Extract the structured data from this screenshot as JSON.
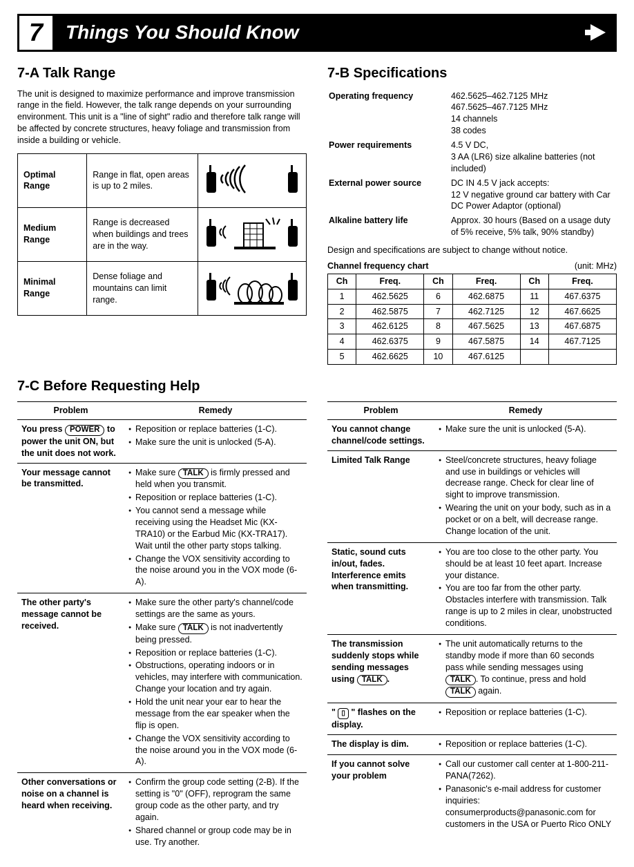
{
  "section_number": "7",
  "header_title": "Things You Should Know",
  "s7a": {
    "heading": "7-A  Talk Range",
    "intro": "The unit is designed to maximize performance and improve transmission range in the field. However, the talk range depends on your surrounding environment. This unit is a \"line of sight\" radio and therefore talk range will be affected by concrete structures, heavy foliage and transmission from inside a building or vehicle.",
    "rows": [
      {
        "label": "Optimal Range",
        "desc": "Range in flat, open areas is up to 2 miles."
      },
      {
        "label": "Medium Range",
        "desc": "Range is decreased when buildings and trees are in the way."
      },
      {
        "label": "Minimal Range",
        "desc": "Dense foliage and mountains can limit range."
      }
    ]
  },
  "s7b": {
    "heading": "7-B  Specifications",
    "specs": [
      {
        "k": "Operating frequency",
        "v": "462.5625–462.7125 MHz\n467.5625–467.7125 MHz\n14 channels\n38 codes"
      },
      {
        "k": "Power requirements",
        "v": "4.5 V DC,\n3 AA (LR6) size alkaline batteries (not included)"
      },
      {
        "k": "External power source",
        "v": "DC IN 4.5 V jack accepts:\n12 V negative ground car battery with Car DC Power Adaptor (optional)"
      },
      {
        "k": "Alkaline battery life",
        "v": "Approx. 30 hours (Based on a usage duty of 5% receive, 5% talk, 90% standby)"
      }
    ],
    "note": "Design and specifications are subject to change without notice.",
    "freq_title": "Channel frequency chart",
    "freq_unit": "(unit: MHz)",
    "freq_cols": [
      "Ch",
      "Freq.",
      "Ch",
      "Freq.",
      "Ch",
      "Freq."
    ],
    "freq_rows": [
      [
        "1",
        "462.5625",
        "6",
        "462.6875",
        "11",
        "467.6375"
      ],
      [
        "2",
        "462.5875",
        "7",
        "462.7125",
        "12",
        "467.6625"
      ],
      [
        "3",
        "462.6125",
        "8",
        "467.5625",
        "13",
        "467.6875"
      ],
      [
        "4",
        "462.6375",
        "9",
        "467.5875",
        "14",
        "467.7125"
      ],
      [
        "5",
        "462.6625",
        "10",
        "467.6125",
        "",
        ""
      ]
    ]
  },
  "s7c": {
    "heading": "7-C  Before Requesting Help",
    "col_problem": "Problem",
    "col_remedy": "Remedy",
    "left": [
      {
        "problem_html": "You press <span class='btn-key'>POWER</span> to power the unit ON, but the unit does not work.",
        "remedies": [
          "Reposition or replace batteries (1-C).",
          "Make sure the unit is unlocked (5-A)."
        ]
      },
      {
        "problem_html": "Your message cannot be transmitted.",
        "remedies": [
          "Make sure <span class='btn-key'>TALK</span> is firmly pressed and held when you transmit.",
          "Reposition or replace batteries (1-C).",
          "You cannot send a message while receiving using the Headset Mic (KX-TRA10) or the Earbud Mic (KX-TRA17). Wait until the other party stops talking.",
          "Change the VOX sensitivity according to the noise around you in the VOX mode (6-A)."
        ]
      },
      {
        "problem_html": "The other party's message cannot be received.",
        "remedies": [
          "Make sure the other party's channel/code settings are the same as yours.",
          "Make sure <span class='btn-key'>TALK</span> is not inadvertently being pressed.",
          "Reposition or replace batteries (1-C).",
          "Obstructions, operating indoors or in vehicles, may interfere with communication. Change your location and try again.",
          "Hold the unit near your ear to hear the message from the ear speaker when the flip is open.",
          "Change the VOX sensitivity according to the noise around you in the VOX mode (6-A)."
        ]
      },
      {
        "problem_html": "Other conversations or noise on a channel is heard when receiving.",
        "remedies": [
          "Confirm the group code setting (2-B). If the setting is \"0\" (OFF), reprogram the same group code as the other party, and try again.",
          "Shared channel or group code may be in use. Try another."
        ]
      }
    ],
    "right": [
      {
        "problem_html": "You cannot change channel/code settings.",
        "remedies": [
          "Make sure the unit is unlocked (5-A)."
        ]
      },
      {
        "problem_html": "Limited Talk Range",
        "remedies": [
          "Steel/concrete structures, heavy foliage and use in buildings or vehicles will decrease range. Check for clear line of sight to improve transmission.",
          "Wearing the unit on your body, such as in a pocket or on a belt, will decrease range. Change location of the unit."
        ]
      },
      {
        "problem_html": "Static, sound cuts in/out, fades. Interference emits when transmitting.",
        "remedies": [
          "You are too close to the other party. You should be at least 10 feet apart. Increase your distance.",
          "You are too far from the other party. Obstacles interfere with transmission. Talk range is up to 2 miles in clear, unobstructed conditions."
        ]
      },
      {
        "problem_html": "The transmission suddenly stops while sending messages using <span class='btn-key'>TALK</span>.",
        "remedies": [
          "The unit automatically returns to the standby mode if more than 60 seconds pass while sending messages using <span class='btn-key'>TALK</span>. To continue, press and hold <span class='btn-key'>TALK</span> again."
        ]
      },
      {
        "problem_html": "\" <span class='batt-key'>▯</span> \" flashes on the display.",
        "remedies": [
          "Reposition or replace batteries (1-C)."
        ]
      },
      {
        "problem_html": "The display is dim.",
        "remedies": [
          "Reposition or replace batteries (1-C)."
        ]
      },
      {
        "problem_html": "If you cannot solve your problem",
        "remedies": [
          "Call our customer call center at 1-800-211-PANA(7262).",
          "Panasonic's e-mail address for customer inquiries: consumerproducts@panasonic.com for customers in the USA or Puerto Rico ONLY"
        ]
      }
    ]
  }
}
